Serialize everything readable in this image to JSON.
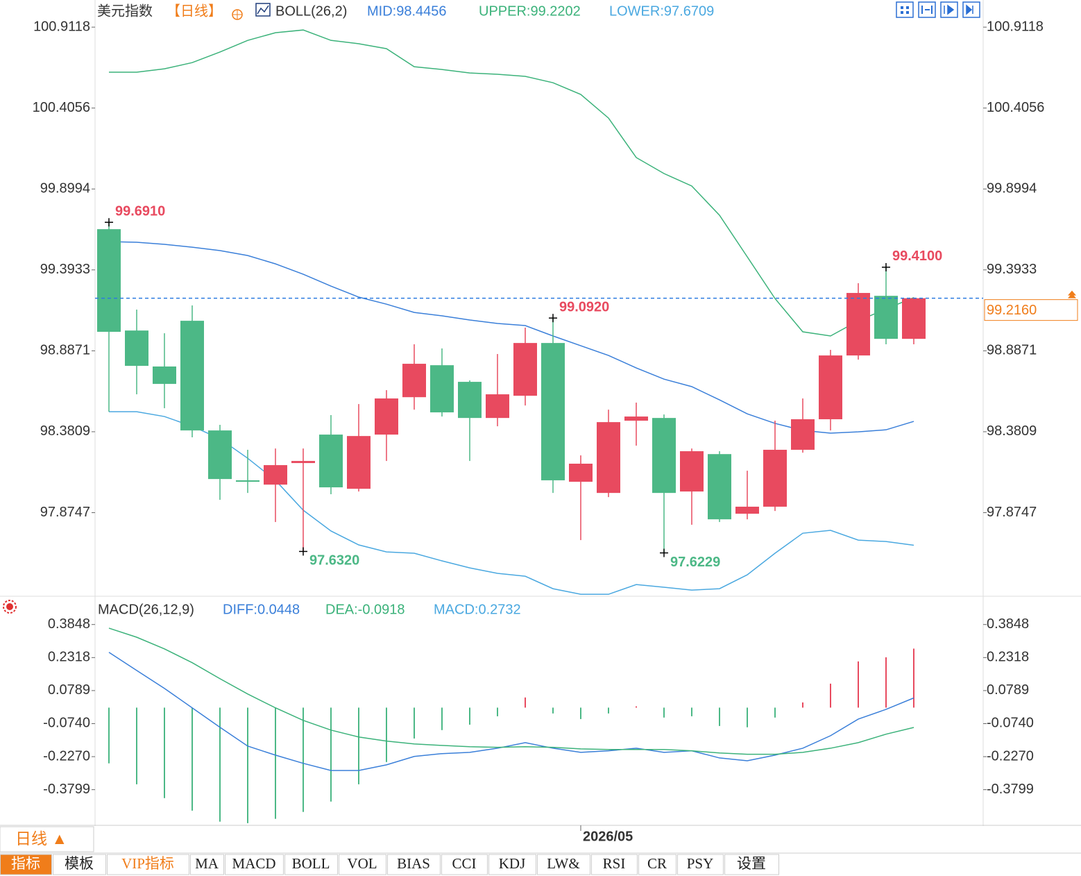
{
  "chart_data": [
    {
      "type": "candlestick",
      "title": "美元指数",
      "period": "【日线】",
      "indicator": "BOLL(26,2)",
      "categories": [
        null,
        null,
        null,
        null,
        null,
        null,
        null,
        null,
        null,
        null,
        null,
        null,
        null,
        null,
        null,
        null,
        null,
        "2026/05",
        null,
        null,
        null,
        null,
        null,
        null,
        null,
        null,
        null,
        null,
        null,
        null
      ],
      "open": [
        99.648,
        99.014,
        98.789,
        99.075,
        98.389,
        98.077,
        98.05,
        98.185,
        98.363,
        98.024,
        98.363,
        98.597,
        98.797,
        98.693,
        98.467,
        98.606,
        98.936,
        98.068,
        97.998,
        98.45,
        98.467,
        98.007,
        98.241,
        97.868,
        97.912,
        98.268,
        98.459,
        98.858,
        99.231,
        98.962
      ],
      "high": [
        99.691,
        99.145,
        98.997,
        99.171,
        98.424,
        98.268,
        98.276,
        98.276,
        98.485,
        98.554,
        98.641,
        98.928,
        98.902,
        98.702,
        98.867,
        99.032,
        99.092,
        98.233,
        98.519,
        98.563,
        98.489,
        98.276,
        98.259,
        98.137,
        98.45,
        98.589,
        98.893,
        99.31,
        99.41,
        99.221
      ],
      "low": [
        98.506,
        98.615,
        98.528,
        98.346,
        97.955,
        97.998,
        97.816,
        97.632,
        97.99,
        98.007,
        98.198,
        98.519,
        98.476,
        98.198,
        98.415,
        98.545,
        97.998,
        97.703,
        97.972,
        98.294,
        97.6229,
        97.799,
        97.816,
        97.833,
        97.885,
        98.25,
        98.389,
        98.832,
        98.928,
        98.928
      ],
      "close": [
        99.006,
        98.793,
        98.68,
        98.389,
        98.085,
        98.068,
        98.172,
        98.198,
        98.033,
        98.354,
        98.589,
        98.806,
        98.502,
        98.467,
        98.615,
        98.936,
        98.077,
        98.181,
        98.441,
        98.476,
        97.998,
        98.259,
        97.833,
        97.912,
        98.268,
        98.459,
        98.858,
        99.249,
        98.962,
        99.216
      ],
      "up_color": "#e84a5f",
      "down_color": "#4cb886",
      "series": [
        {
          "name": "MID:98.4456",
          "color": "#3a7fd9",
          "values": [
            99.57,
            99.566,
            99.553,
            99.535,
            99.514,
            99.483,
            99.431,
            99.366,
            99.292,
            99.223,
            99.179,
            99.127,
            99.106,
            99.08,
            99.058,
            99.045,
            98.98,
            98.919,
            98.858,
            98.78,
            98.71,
            98.663,
            98.58,
            98.493,
            98.433,
            98.389,
            98.372,
            98.38,
            98.393,
            98.4456
          ]
        },
        {
          "name": "UPPER:99.2202",
          "color": "#3bb27a",
          "values": [
            100.63,
            100.63,
            100.651,
            100.69,
            100.756,
            100.829,
            100.877,
            100.894,
            100.829,
            100.808,
            100.777,
            100.664,
            100.647,
            100.625,
            100.617,
            100.604,
            100.564,
            100.491,
            100.343,
            100.096,
            99.996,
            99.918,
            99.735,
            99.475,
            99.214,
            99.006,
            98.98,
            99.075,
            99.149,
            99.2202
          ]
        },
        {
          "name": "LOWER:97.6709",
          "color": "#4aa8e0",
          "values": [
            98.506,
            98.506,
            98.476,
            98.415,
            98.337,
            98.215,
            98.077,
            97.89,
            97.76,
            97.673,
            97.629,
            97.621,
            97.573,
            97.529,
            97.495,
            97.477,
            97.399,
            97.364,
            97.364,
            97.425,
            97.408,
            97.39,
            97.399,
            97.486,
            97.621,
            97.746,
            97.764,
            97.703,
            97.694,
            97.6709
          ]
        }
      ],
      "ylim": [
        97.356,
        100.96
      ],
      "yticks": [
        100.9118,
        100.4056,
        99.8994,
        99.3933,
        98.8871,
        98.3809,
        97.8747
      ],
      "annotations": [
        {
          "label": "99.6910",
          "value": 99.691
        },
        {
          "label": "97.6320",
          "value": 97.632
        },
        {
          "label": "99.0920",
          "value": 99.092
        },
        {
          "label": "97.6229",
          "value": 97.6229
        },
        {
          "label": "99.4100",
          "value": 99.41
        }
      ],
      "last_price": {
        "value": 99.216,
        "label": "99.2160",
        "color": "#f07d1a"
      }
    },
    {
      "type": "macd",
      "title": "MACD(26,12,9)",
      "histogram_name": "MACD:0.2732",
      "values": [
        -0.258,
        -0.355,
        -0.419,
        -0.477,
        -0.528,
        -0.535,
        -0.515,
        -0.483,
        -0.435,
        -0.355,
        -0.252,
        -0.143,
        -0.104,
        -0.079,
        -0.04,
        0.047,
        -0.027,
        -0.053,
        -0.027,
        0.006,
        -0.046,
        -0.04,
        -0.085,
        -0.091,
        -0.046,
        0.024,
        0.111,
        0.214,
        0.233,
        0.2732
      ],
      "histogram_name_color": "#4aa8e0",
      "up_color": "#e84a5f",
      "down_color": "#4cb886",
      "series": [
        {
          "name": "DIFF:0.0448",
          "color": "#3a7fd9",
          "values": [
            0.256,
            0.172,
            0.089,
            -0.001,
            -0.091,
            -0.178,
            -0.22,
            -0.258,
            -0.291,
            -0.291,
            -0.265,
            -0.226,
            -0.213,
            -0.207,
            -0.188,
            -0.162,
            -0.188,
            -0.207,
            -0.2,
            -0.188,
            -0.207,
            -0.2,
            -0.233,
            -0.246,
            -0.22,
            -0.188,
            -0.13,
            -0.053,
            -0.008,
            0.0448
          ]
        },
        {
          "name": "DEA:-0.0918",
          "color": "#3bb27a",
          "values": [
            0.368,
            0.326,
            0.272,
            0.208,
            0.134,
            0.063,
            -0.001,
            -0.059,
            -0.104,
            -0.136,
            -0.155,
            -0.168,
            -0.175,
            -0.181,
            -0.184,
            -0.181,
            -0.184,
            -0.191,
            -0.194,
            -0.194,
            -0.194,
            -0.2,
            -0.21,
            -0.216,
            -0.216,
            -0.207,
            -0.188,
            -0.162,
            -0.123,
            -0.0918
          ]
        }
      ],
      "ylim": [
        -0.545,
        0.506
      ],
      "yticks": [
        0.3848,
        0.2318,
        0.0789,
        {
          "value": -0.074,
          "label": "-0.0740"
        },
        {
          "value": -0.227,
          "label": "-0.2270"
        },
        -0.3799
      ]
    }
  ],
  "bottom_bar": {
    "period_button": "日线 ▲",
    "tabs": [
      "指标",
      "模板",
      "VIP指标",
      "MA",
      "MACD",
      "BOLL",
      "VOL",
      "BIAS",
      "CCI",
      "KDJ",
      "LW&",
      "RSI",
      "CR",
      "PSY",
      "设置"
    ]
  }
}
